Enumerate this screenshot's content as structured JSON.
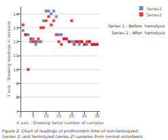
{
  "chart_data": {
    "type": "scatter",
    "xlabel": "X axis : Showing Serial number of samples",
    "ylabel": "Y axis : Showing readings in seconds",
    "x": [
      1,
      2,
      3,
      4,
      5,
      6,
      7,
      8,
      9,
      10,
      11,
      12,
      13,
      14,
      15,
      16,
      17,
      18,
      19,
      20,
      21,
      22,
      23,
      24,
      25,
      26,
      27,
      28,
      29,
      30
    ],
    "series": [
      {
        "name": "Series1",
        "color": "#4472C4",
        "marker": "square",
        "values": [
          12.8,
          12.5,
          12.5,
          12.0,
          12.2,
          11.8,
          12.0,
          12.0,
          13.5,
          14.2,
          14.2,
          14.0,
          14.2,
          13.8,
          12.5,
          12.5,
          12.2,
          12.2,
          12.0,
          12.0,
          12.0,
          12.0,
          11.8,
          12.0,
          11.8,
          11.8,
          12.0,
          11.8,
          11.8,
          11.8
        ]
      },
      {
        "name": "Series2",
        "color": "#FF0000",
        "marker": "square",
        "values": [
          13.2,
          12.5,
          10.0,
          12.2,
          12.0,
          12.0,
          12.2,
          13.0,
          13.0,
          13.5,
          13.8,
          13.2,
          13.5,
          12.5,
          12.0,
          11.8,
          12.2,
          12.2,
          12.0,
          13.5,
          11.8,
          12.0,
          12.0,
          12.0,
          11.8,
          12.0,
          12.0,
          11.8,
          11.8,
          11.8
        ]
      }
    ],
    "xlim": [
      0,
      31
    ],
    "xticks": [
      0,
      5,
      10,
      15,
      20,
      25,
      30
    ],
    "ylim": [
      7,
      14.5
    ],
    "yticks": [
      7,
      8,
      9,
      10,
      11,
      12,
      13,
      14
    ],
    "grid": "y",
    "legend": "upper right",
    "annotations": [
      "Series 1 : Before  hemolysis",
      "Series 2 : After  hemolysis"
    ],
    "caption": "Figure 2: Chart of readings of prothrombin time of non-hemolyzed\n(series 1) and hemolyzed (series 2) samples from normal volunteers"
  }
}
